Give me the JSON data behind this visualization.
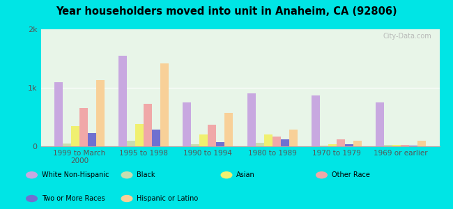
{
  "title": "Year householders moved into unit in Anaheim, CA (92806)",
  "categories": [
    "1999 to March\n2000",
    "1995 to 1998",
    "1990 to 1994",
    "1980 to 1989",
    "1970 to 1979",
    "1969 or earlier"
  ],
  "series": {
    "White Non-Hispanic": [
      1100,
      1550,
      750,
      900,
      870,
      750
    ],
    "Black": [
      50,
      100,
      30,
      60,
      15,
      20
    ],
    "Asian": [
      350,
      380,
      200,
      200,
      30,
      20
    ],
    "Other Race": [
      650,
      730,
      370,
      170,
      120,
      20
    ],
    "Two or More Races": [
      230,
      280,
      70,
      120,
      30,
      15
    ],
    "Hispanic or Latino": [
      1130,
      1420,
      570,
      290,
      90,
      90
    ]
  },
  "colors": {
    "White Non-Hispanic": "#c8a8e0",
    "Black": "#c8ddb0",
    "Asian": "#f0f070",
    "Other Race": "#f0a8a8",
    "Two or More Races": "#7070d0",
    "Hispanic or Latino": "#f8d098"
  },
  "ylim": [
    0,
    2000
  ],
  "ytick_labels": [
    "0",
    "1k",
    "2k"
  ],
  "background_color": "#e8f5e8",
  "outer_background": "#00e5e5",
  "watermark": "City-Data.com",
  "legend_row1": [
    "White Non-Hispanic",
    "Black",
    "Asian",
    "Other Race"
  ],
  "legend_row2": [
    "Two or More Races",
    "Hispanic or Latino"
  ]
}
